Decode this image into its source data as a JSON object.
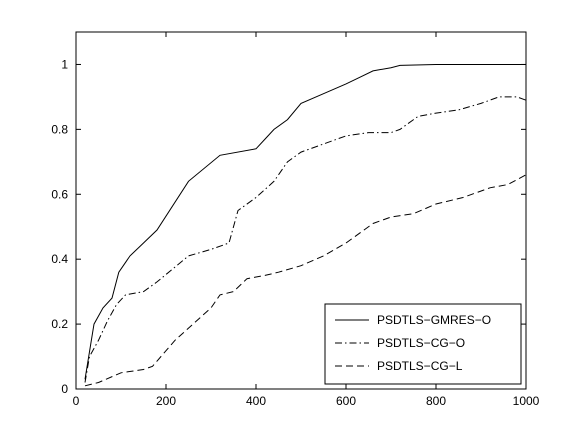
{
  "chart_data": {
    "type": "line",
    "title": "",
    "xlabel": "",
    "ylabel": "",
    "xlim": [
      0,
      1000
    ],
    "ylim": [
      0,
      1.1
    ],
    "xticks": [
      0,
      200,
      400,
      600,
      800,
      1000
    ],
    "xtick_labels": [
      "0",
      "200",
      "400",
      "600",
      "800",
      "1000"
    ],
    "yticks": [
      0,
      0.2,
      0.4,
      0.6,
      0.8,
      1
    ],
    "ytick_labels": [
      "0",
      "0.2",
      "0.4",
      "0.6",
      "0.8",
      "1"
    ],
    "grid": false,
    "legend_position": "bottom-right",
    "series": [
      {
        "name": "PSDTLS−GMRES−O",
        "style": "solid",
        "color": "#000000",
        "points": [
          [
            20,
            0.03
          ],
          [
            40,
            0.2
          ],
          [
            60,
            0.25
          ],
          [
            80,
            0.28
          ],
          [
            95,
            0.36
          ],
          [
            120,
            0.41
          ],
          [
            150,
            0.45
          ],
          [
            180,
            0.49
          ],
          [
            250,
            0.64
          ],
          [
            320,
            0.72
          ],
          [
            400,
            0.74
          ],
          [
            420,
            0.77
          ],
          [
            440,
            0.8
          ],
          [
            470,
            0.83
          ],
          [
            500,
            0.88
          ],
          [
            550,
            0.91
          ],
          [
            600,
            0.94
          ],
          [
            630,
            0.96
          ],
          [
            660,
            0.98
          ],
          [
            700,
            0.99
          ],
          [
            720,
            0.997
          ],
          [
            800,
            1.0
          ],
          [
            900,
            1.0
          ],
          [
            1000,
            1.0
          ]
        ]
      },
      {
        "name": "PSDTLS−CG−O",
        "style": "dashdot",
        "color": "#000000",
        "points": [
          [
            20,
            0.02
          ],
          [
            30,
            0.1
          ],
          [
            50,
            0.15
          ],
          [
            70,
            0.21
          ],
          [
            90,
            0.26
          ],
          [
            110,
            0.29
          ],
          [
            150,
            0.3
          ],
          [
            180,
            0.33
          ],
          [
            250,
            0.41
          ],
          [
            300,
            0.43
          ],
          [
            340,
            0.45
          ],
          [
            360,
            0.55
          ],
          [
            400,
            0.59
          ],
          [
            440,
            0.64
          ],
          [
            470,
            0.7
          ],
          [
            500,
            0.73
          ],
          [
            600,
            0.78
          ],
          [
            650,
            0.79
          ],
          [
            700,
            0.79
          ],
          [
            720,
            0.8
          ],
          [
            760,
            0.84
          ],
          [
            800,
            0.85
          ],
          [
            850,
            0.86
          ],
          [
            900,
            0.88
          ],
          [
            940,
            0.9
          ],
          [
            980,
            0.9
          ],
          [
            1000,
            0.89
          ]
        ]
      },
      {
        "name": "PSDTLS−CG−L",
        "style": "dashed",
        "color": "#000000",
        "points": [
          [
            20,
            0.01
          ],
          [
            50,
            0.02
          ],
          [
            100,
            0.05
          ],
          [
            150,
            0.06
          ],
          [
            170,
            0.07
          ],
          [
            220,
            0.15
          ],
          [
            300,
            0.25
          ],
          [
            320,
            0.29
          ],
          [
            350,
            0.3
          ],
          [
            380,
            0.34
          ],
          [
            420,
            0.35
          ],
          [
            450,
            0.36
          ],
          [
            500,
            0.38
          ],
          [
            550,
            0.41
          ],
          [
            600,
            0.45
          ],
          [
            660,
            0.51
          ],
          [
            700,
            0.53
          ],
          [
            750,
            0.54
          ],
          [
            800,
            0.57
          ],
          [
            860,
            0.59
          ],
          [
            920,
            0.62
          ],
          [
            960,
            0.63
          ],
          [
            1000,
            0.66
          ]
        ]
      }
    ]
  }
}
